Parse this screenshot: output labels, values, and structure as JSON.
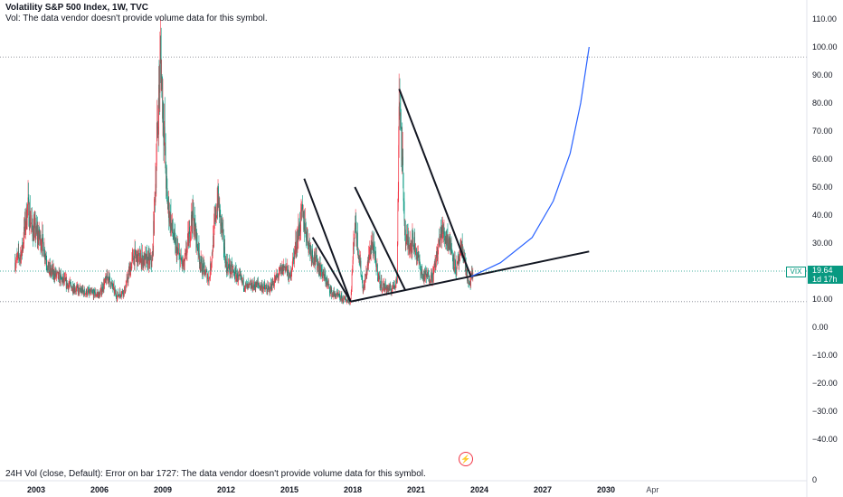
{
  "header": {
    "title": "Volatility S&P 500 Index, 1W, TVC",
    "vol_note": "Vol: The data vendor doesn't provide volume data for this symbol."
  },
  "footer": {
    "message": "24H Vol (close, Default): Error on bar 1727: The data vendor doesn't provide volume data for this symbol."
  },
  "price_label": {
    "ticker": "VIX",
    "value": "19.64",
    "countdown": "1d 17h"
  },
  "colors": {
    "up": "#089981",
    "down": "#f23645",
    "accent": "#089981",
    "curve": "#2962ff"
  },
  "chart_data": {
    "type": "candlestick",
    "title": "Volatility S&P 500 Index, 1W, TVC",
    "ylim": [
      -50,
      115
    ],
    "xlim": [
      2002.0,
      2035.0
    ],
    "y_ticks": [
      "110.00",
      "100.00",
      "90.00",
      "80.00",
      "70.00",
      "60.00",
      "50.00",
      "40.00",
      "30.00",
      "20.00",
      "10.00",
      "0.00",
      "−10.00",
      "−20.00",
      "−30.00",
      "−40.00"
    ],
    "y_tick_values": [
      110,
      100,
      90,
      80,
      70,
      60,
      50,
      40,
      30,
      20,
      10,
      0,
      -10,
      -20,
      -30,
      -40
    ],
    "y_bottom_label": "0",
    "x_ticks": [
      {
        "label": "2003",
        "x": 2003.0
      },
      {
        "label": "2006",
        "x": 2006.0
      },
      {
        "label": "2009",
        "x": 2009.0
      },
      {
        "label": "2012",
        "x": 2012.0
      },
      {
        "label": "2015",
        "x": 2015.0
      },
      {
        "label": "2018",
        "x": 2018.0
      },
      {
        "label": "2021",
        "x": 2021.0
      },
      {
        "label": "2024",
        "x": 2024.0
      },
      {
        "label": "2027",
        "x": 2027.0
      },
      {
        "label": "2030",
        "x": 2030.0
      },
      {
        "label": "Apr",
        "x": 2032.2
      }
    ],
    "last_price": 19.64,
    "horizontal_lines": [
      96.4,
      9.1
    ],
    "series": [
      {
        "name": "VIX",
        "points": [
          [
            2002.0,
            23
          ],
          [
            2002.3,
            26
          ],
          [
            2002.6,
            43
          ],
          [
            2002.8,
            35
          ],
          [
            2003.0,
            33
          ],
          [
            2003.3,
            30
          ],
          [
            2003.6,
            20
          ],
          [
            2004.0,
            18
          ],
          [
            2004.5,
            15
          ],
          [
            2005.0,
            13
          ],
          [
            2005.5,
            12
          ],
          [
            2006.0,
            11.5
          ],
          [
            2006.4,
            18
          ],
          [
            2006.8,
            11
          ],
          [
            2007.2,
            13
          ],
          [
            2007.6,
            25
          ],
          [
            2008.0,
            24
          ],
          [
            2008.5,
            23
          ],
          [
            2008.8,
            80
          ],
          [
            2008.9,
            96
          ],
          [
            2009.2,
            45
          ],
          [
            2009.6,
            28
          ],
          [
            2010.0,
            21
          ],
          [
            2010.4,
            40
          ],
          [
            2010.8,
            22
          ],
          [
            2011.2,
            17
          ],
          [
            2011.6,
            46
          ],
          [
            2012.0,
            22
          ],
          [
            2012.5,
            18
          ],
          [
            2013.0,
            14
          ],
          [
            2013.5,
            15
          ],
          [
            2014.0,
            13
          ],
          [
            2014.8,
            22
          ],
          [
            2015.0,
            17
          ],
          [
            2015.6,
            40
          ],
          [
            2016.0,
            27
          ],
          [
            2016.5,
            20
          ],
          [
            2017.0,
            12
          ],
          [
            2017.5,
            10
          ],
          [
            2017.9,
            9.1
          ],
          [
            2018.1,
            38
          ],
          [
            2018.5,
            13
          ],
          [
            2018.9,
            30
          ],
          [
            2019.3,
            15
          ],
          [
            2019.8,
            13
          ],
          [
            2020.1,
            17
          ],
          [
            2020.2,
            85
          ],
          [
            2020.5,
            30
          ],
          [
            2020.9,
            30
          ],
          [
            2021.3,
            18
          ],
          [
            2021.8,
            18
          ],
          [
            2022.2,
            34
          ],
          [
            2022.6,
            30
          ],
          [
            2022.9,
            20
          ],
          [
            2023.2,
            28
          ],
          [
            2023.5,
            14
          ],
          [
            2023.7,
            19.64
          ]
        ]
      },
      {
        "name": "trendlines",
        "lines": [
          [
            [
              2015.7,
              53
            ],
            [
              2017.9,
              9.1
            ]
          ],
          [
            [
              2016.1,
              32
            ],
            [
              2017.9,
              9.1
            ]
          ],
          [
            [
              2018.1,
              50
            ],
            [
              2020.5,
              13
            ]
          ],
          [
            [
              2020.2,
              85
            ],
            [
              2023.6,
              18
            ]
          ],
          [
            [
              2017.9,
              9.1
            ],
            [
              2029.2,
              27
            ]
          ]
        ]
      },
      {
        "name": "projection",
        "curve": [
          [
            2023.6,
            18
          ],
          [
            2025.0,
            23
          ],
          [
            2026.5,
            32
          ],
          [
            2027.5,
            45
          ],
          [
            2028.3,
            62
          ],
          [
            2028.8,
            80
          ],
          [
            2029.2,
            100
          ]
        ]
      }
    ]
  }
}
